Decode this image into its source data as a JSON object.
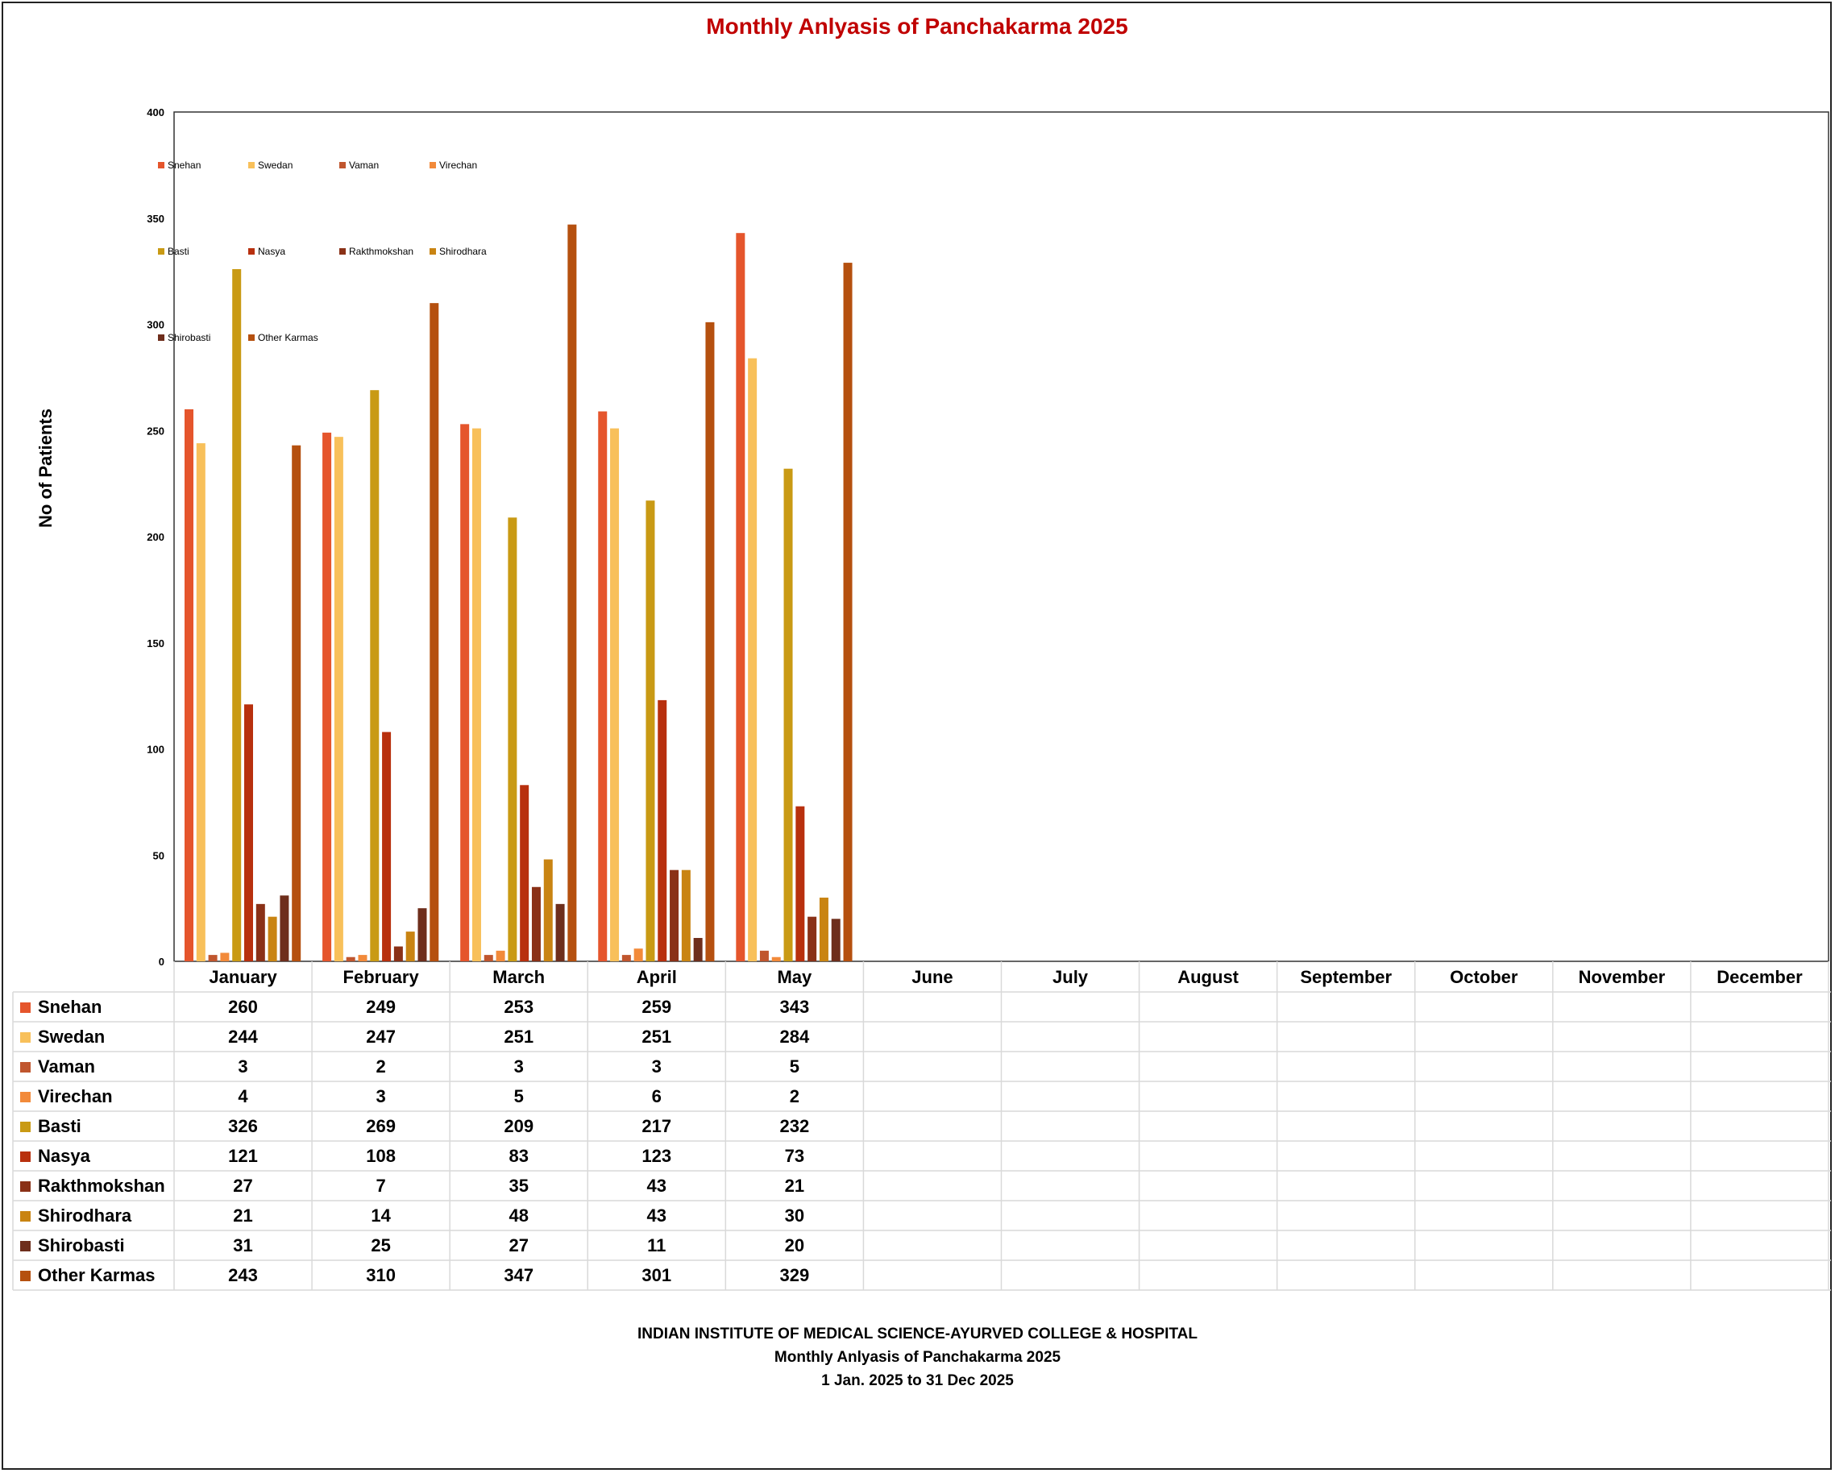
{
  "chart_data": {
    "type": "bar",
    "title": "Monthly Anlyasis of Panchakarma  2025",
    "xlabel": "",
    "ylabel": "No of Patients",
    "ylim": [
      0,
      400
    ],
    "yticks": [
      "0",
      "50",
      "100",
      "150",
      "200",
      "250",
      "300",
      "350",
      "400"
    ],
    "grid": false,
    "legend_position": "top-left",
    "categories": [
      "January",
      "February",
      "March",
      "April",
      "May",
      "June",
      "July",
      "August",
      "September",
      "October",
      "November",
      "December"
    ],
    "series": [
      {
        "name": "Snehan",
        "color": "#E5552C",
        "values": [
          260,
          249,
          253,
          259,
          343,
          null,
          null,
          null,
          null,
          null,
          null,
          null
        ]
      },
      {
        "name": "Swedan",
        "color": "#F8C05A",
        "values": [
          244,
          247,
          251,
          251,
          284,
          null,
          null,
          null,
          null,
          null,
          null,
          null
        ]
      },
      {
        "name": "Vaman",
        "color": "#C0562E",
        "values": [
          3,
          2,
          3,
          3,
          5,
          null,
          null,
          null,
          null,
          null,
          null,
          null
        ]
      },
      {
        "name": "Virechan",
        "color": "#F28A3A",
        "values": [
          4,
          3,
          5,
          6,
          2,
          null,
          null,
          null,
          null,
          null,
          null,
          null
        ]
      },
      {
        "name": "Basti",
        "color": "#C99A14",
        "values": [
          326,
          269,
          209,
          217,
          232,
          null,
          null,
          null,
          null,
          null,
          null,
          null
        ]
      },
      {
        "name": "Nasya",
        "color": "#B8300E",
        "values": [
          121,
          108,
          83,
          123,
          73,
          null,
          null,
          null,
          null,
          null,
          null,
          null
        ]
      },
      {
        "name": "Rakthmokshan",
        "color": "#8A3117",
        "values": [
          27,
          7,
          35,
          43,
          21,
          null,
          null,
          null,
          null,
          null,
          null,
          null
        ]
      },
      {
        "name": "Shirodhara",
        "color": "#C98412",
        "values": [
          21,
          14,
          48,
          43,
          30,
          null,
          null,
          null,
          null,
          null,
          null,
          null
        ]
      },
      {
        "name": "Shirobasti",
        "color": "#6E2E1C",
        "values": [
          31,
          25,
          27,
          11,
          20,
          null,
          null,
          null,
          null,
          null,
          null,
          null
        ]
      },
      {
        "name": "Other Karmas",
        "color": "#B5500F",
        "values": [
          243,
          310,
          347,
          301,
          329,
          null,
          null,
          null,
          null,
          null,
          null,
          null
        ]
      }
    ]
  },
  "footer": {
    "line1": "INDIAN INSTITUTE OF MEDICAL SCIENCE-AYURVED COLLEGE & HOSPITAL",
    "line2": "Monthly Anlyasis of Panchakarma  2025",
    "line3": "1 Jan. 2025 to 31 Dec 2025"
  },
  "colors": {
    "title": "#C00000",
    "axis": "#333333",
    "table_grid": "#D9D9D9"
  }
}
